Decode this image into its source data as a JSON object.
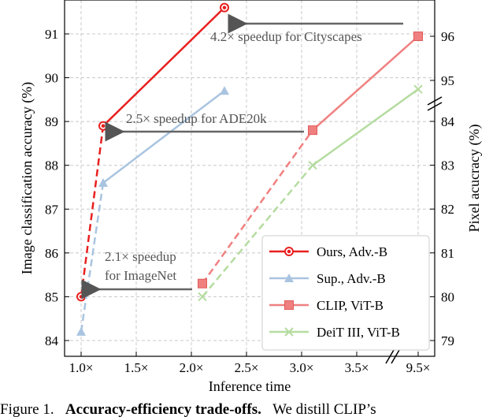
{
  "chart_data": {
    "type": "line",
    "xlabel": "Inference time",
    "ylabel_left": "Image classification accuracy (%)",
    "ylabel_right": "Pixel acucracy (%)",
    "x_ticks": [
      "1.0×",
      "1.5×",
      "2.0×",
      "2.5×",
      "3.0×",
      "3.5×",
      "9.5×"
    ],
    "left_axis": {
      "ticks": [
        84,
        85,
        86,
        87,
        88,
        89,
        90,
        91
      ],
      "ylim": [
        84,
        91.7
      ]
    },
    "right_axis": {
      "ticks": [
        79,
        80,
        81,
        82,
        83,
        84,
        95,
        96
      ],
      "note": "broken axis between 84 and 95"
    },
    "grid": true,
    "legend_placement": "bottom-right",
    "series": [
      {
        "name": "Ours, Adv.-B",
        "color": "#e8201f",
        "marker": "circle",
        "axis": "left",
        "points": [
          {
            "x": "1.0×",
            "y": 85.0
          },
          {
            "x": "1.2×",
            "y": 88.9
          },
          {
            "x": "2.3×",
            "y": 91.6
          }
        ]
      },
      {
        "name": "Sup., Adv.-B",
        "color": "#a9c4e0",
        "marker": "triangle",
        "axis": "left",
        "points": [
          {
            "x": "1.0×",
            "y": 84.2
          },
          {
            "x": "1.2×",
            "y": 87.6
          },
          {
            "x": "2.3×",
            "y": 89.7
          }
        ]
      },
      {
        "name": "CLIP, ViT-B",
        "color": "#f08080",
        "marker": "square",
        "axis": "right",
        "points": [
          {
            "x": "2.1×",
            "y": 80.3
          },
          {
            "x": "3.1×",
            "y": 83.8
          },
          {
            "x": "9.5×",
            "y": 96.0
          }
        ]
      },
      {
        "name": "DeiT III, ViT-B",
        "color": "#b5dca0",
        "marker": "x",
        "axis": "right",
        "points": [
          {
            "x": "2.1×",
            "y": 80.0
          },
          {
            "x": "3.1×",
            "y": 83.0
          },
          {
            "x": "9.5×",
            "y": 94.8
          }
        ]
      }
    ],
    "annotations": [
      {
        "text": "4.2× speedup for Cityscapes"
      },
      {
        "text": "2.5× speedup for ADE20k"
      },
      {
        "text_lines": [
          "2.1× speedup",
          "for ImageNet"
        ]
      }
    ]
  },
  "caption": {
    "prefix": "Figure 1.",
    "bold": "Accuracy-efficiency trade-offs.",
    "rest": "We distill CLIP’s"
  }
}
